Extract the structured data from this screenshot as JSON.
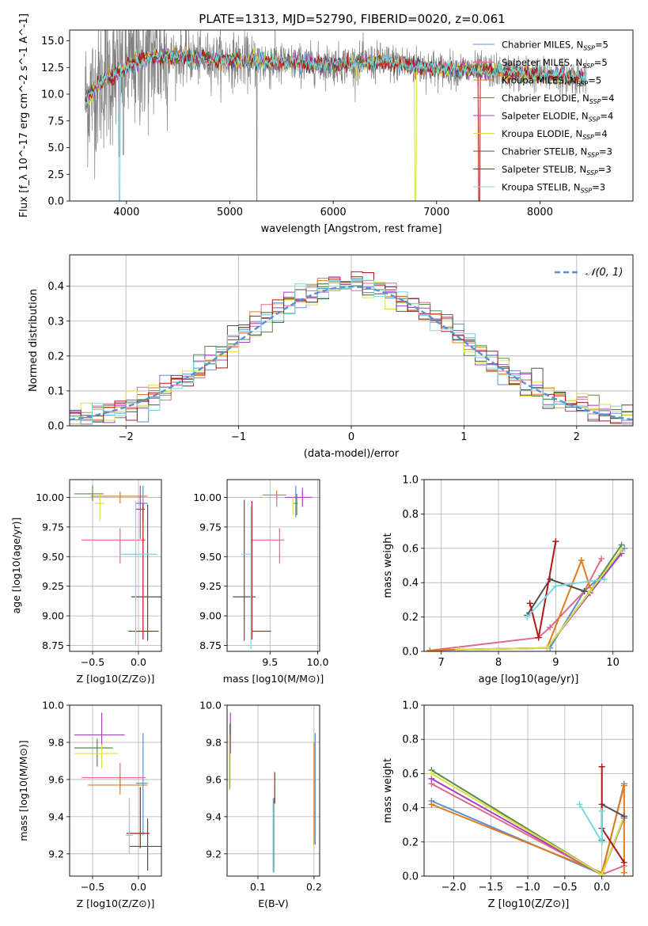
{
  "figure": {
    "title": "PLATE=1313, MJD=52790, FIBERID=0020, z=0.061"
  },
  "colors": {
    "chabrier_miles": "#5b8fd6",
    "salpeter_miles": "#e06a8a",
    "kroupa_miles": "#e07b1a",
    "chabrier_elodie": "#5a8a4a",
    "salpeter_elodie": "#a640c0",
    "kroupa_elodie": "#d8e040",
    "chabrier_stelib": "#505050",
    "salpeter_stelib": "#b01818",
    "kroupa_stelib": "#78d8e0",
    "data": "#808080",
    "normal": "#5b8fd6"
  },
  "legend": [
    {
      "key": "chabrier_miles",
      "label": "Chabrier MILES, N_SSP=5"
    },
    {
      "key": "salpeter_miles",
      "label": "Salpeter MILES, N_SSP=5"
    },
    {
      "key": "kroupa_miles",
      "label": "Kroupa MILES, N_SSP=5"
    },
    {
      "key": "chabrier_elodie",
      "label": "Chabrier ELODIE, N_SSP=4"
    },
    {
      "key": "salpeter_elodie",
      "label": "Salpeter ELODIE, N_SSP=4"
    },
    {
      "key": "kroupa_elodie",
      "label": "Kroupa ELODIE, N_SSP=4"
    },
    {
      "key": "chabrier_stelib",
      "label": "Chabrier STELIB, N_SSP=3"
    },
    {
      "key": "salpeter_stelib",
      "label": "Salpeter STELIB, N_SSP=3"
    },
    {
      "key": "kroupa_stelib",
      "label": "Kroupa STELIB, N_SSP=3"
    }
  ],
  "chart_data": [
    {
      "id": "spectrum",
      "type": "line",
      "title": "PLATE=1313, MJD=52790, FIBERID=0020, z=0.061",
      "xlabel": "wavelength [Angstrom, rest frame]",
      "ylabel": "Flux [f_λ 10^-17 erg cm^-2 s^-1 A^-1]",
      "xlim": [
        3450,
        8900
      ],
      "ylim": [
        0,
        16
      ],
      "xticks": [
        4000,
        5000,
        6000,
        7000,
        8000
      ],
      "yticks": [
        0.0,
        2.5,
        5.0,
        7.5,
        10.0,
        12.5,
        15.0
      ],
      "grid": false,
      "legend_position": "right",
      "continuum_model": {
        "x": [
          3600,
          3800,
          4000,
          4200,
          4500,
          5000,
          5500,
          6000,
          6500,
          7000,
          7500,
          8000,
          8500
        ],
        "y": [
          9.5,
          11.5,
          12.5,
          13.5,
          13.5,
          13.2,
          12.9,
          12.8,
          13.0,
          12.4,
          12.2,
          11.8,
          11.5
        ]
      }
    },
    {
      "id": "residuals",
      "type": "histogram",
      "xlabel": "(data-model)/error",
      "ylabel": "Normed distribution",
      "xlim": [
        -2.5,
        2.5
      ],
      "ylim": [
        0,
        0.49
      ],
      "xticks": [
        -2,
        -1,
        0,
        1,
        2
      ],
      "yticks": [
        0.0,
        0.1,
        0.2,
        0.3,
        0.4
      ],
      "grid": true,
      "bin_width": 0.1,
      "reference": {
        "label": "𝒩(0, 1)",
        "mean": 0,
        "sigma": 1
      },
      "legend_position": "top-right"
    },
    {
      "id": "age_vs_Z",
      "type": "errorbar",
      "xlabel": "Z [log10(Z/Z⊙)]",
      "ylabel": "age  [log10(age/yr)]",
      "xlim": [
        -0.75,
        0.25
      ],
      "ylim": [
        8.7,
        10.15
      ],
      "xticks": [
        -0.5,
        0.0
      ],
      "yticks": [
        8.75,
        9.0,
        9.25,
        9.5,
        9.75,
        10.0
      ],
      "grid": true,
      "series": [
        {
          "key": "chabrier_miles",
          "x": 0.05,
          "xerr": [
            0.08,
            0.05
          ],
          "y": 9.95,
          "yerr": [
            0.15,
            0.15
          ]
        },
        {
          "key": "salpeter_miles",
          "x": -0.2,
          "xerr": [
            0.42,
            0.28
          ],
          "y": 9.64,
          "yerr": [
            0.2,
            0.1
          ]
        },
        {
          "key": "kroupa_miles",
          "x": -0.2,
          "xerr": [
            0.32,
            0.3
          ],
          "y": 10.01,
          "yerr": [
            0.06,
            0.04
          ]
        },
        {
          "key": "chabrier_elodie",
          "x": -0.5,
          "xerr": [
            0.2,
            0.12
          ],
          "y": 10.03,
          "yerr": [
            0.06,
            0.07
          ]
        },
        {
          "key": "salpeter_elodie",
          "x": 0.02,
          "xerr": [
            0.05,
            0.05
          ],
          "y": 9.9,
          "yerr": [
            0.25,
            0.2
          ]
        },
        {
          "key": "kroupa_elodie",
          "x": -0.42,
          "xerr": [
            0.05,
            0.05
          ],
          "y": 9.95,
          "yerr": [
            0.15,
            0.08
          ]
        },
        {
          "key": "chabrier_stelib",
          "x": 0.1,
          "xerr": [
            0.18,
            0.17
          ],
          "y": 9.16,
          "yerr": [
            0.37,
            0.78
          ]
        },
        {
          "key": "salpeter_stelib",
          "x": 0.05,
          "xerr": [
            0.16,
            0.17
          ],
          "y": 8.87,
          "yerr": [
            0.07,
            1.08
          ]
        },
        {
          "key": "kroupa_stelib",
          "x": -0.03,
          "xerr": [
            0.17,
            0.23
          ],
          "y": 9.52,
          "yerr": [
            0.77,
            0.45
          ]
        }
      ]
    },
    {
      "id": "age_vs_mass",
      "type": "errorbar",
      "xlabel": "mass [log10(M/M⊙)]",
      "ylabel": "",
      "xlim": [
        9.05,
        10.02
      ],
      "ylim": [
        8.7,
        10.15
      ],
      "xticks": [
        9.5,
        10.0
      ],
      "yticks": [
        8.75,
        9.0,
        9.25,
        9.5,
        9.75,
        10.0
      ],
      "grid": true,
      "series": [
        {
          "key": "chabrier_miles",
          "x": 9.77,
          "xerr": [
            0.02,
            0.02
          ],
          "y": 9.95,
          "yerr": [
            0.12,
            0.15
          ]
        },
        {
          "key": "salpeter_miles",
          "x": 9.6,
          "xerr": [
            0.3,
            0.05
          ],
          "y": 9.64,
          "yerr": [
            0.2,
            0.1
          ]
        },
        {
          "key": "kroupa_miles",
          "x": 9.57,
          "xerr": [
            0.15,
            0.1
          ],
          "y": 10.02,
          "yerr": [
            0.1,
            0.04
          ]
        },
        {
          "key": "chabrier_elodie",
          "x": 9.78,
          "xerr": [
            0.01,
            0.01
          ],
          "y": 9.95,
          "yerr": [
            0.1,
            0.08
          ]
        },
        {
          "key": "salpeter_elodie",
          "x": 9.84,
          "xerr": [
            0.18,
            0.1
          ],
          "y": 10.0,
          "yerr": [
            0.08,
            0.08
          ]
        },
        {
          "key": "kroupa_elodie",
          "x": 9.74,
          "xerr": [
            0.01,
            0.01
          ],
          "y": 9.95,
          "yerr": [
            0.1,
            0.05
          ]
        },
        {
          "key": "chabrier_stelib",
          "x": 9.23,
          "xerr": [
            0.12,
            0.12
          ],
          "y": 9.16,
          "yerr": [
            0.37,
            0.82
          ]
        },
        {
          "key": "salpeter_stelib",
          "x": 9.31,
          "xerr": [
            0.0,
            0.2
          ],
          "y": 8.87,
          "yerr": [
            0.07,
            1.1
          ]
        },
        {
          "key": "kroupa_stelib",
          "x": 9.3,
          "xerr": [
            0.1,
            0.0
          ],
          "y": 9.52,
          "yerr": [
            0.8,
            0.4
          ]
        }
      ]
    },
    {
      "id": "mass_weight_vs_age",
      "type": "line",
      "xlabel": "age  [log10(age/yr)]",
      "ylabel": "mass weight",
      "xlim": [
        6.7,
        10.35
      ],
      "ylim": [
        0,
        1.0
      ],
      "xticks": [
        7,
        8,
        9,
        10
      ],
      "yticks": [
        0.0,
        0.2,
        0.4,
        0.6,
        0.8,
        1.0
      ],
      "grid": true,
      "series": [
        {
          "key": "chabrier_miles",
          "x": [
            7.3,
            8.9,
            9.5,
            9.8,
            10.2
          ],
          "y": [
            0.01,
            0.02,
            0.35,
            0.44,
            0.6
          ]
        },
        {
          "key": "salpeter_miles",
          "x": [
            6.8,
            8.7,
            8.9,
            9.5,
            9.8
          ],
          "y": [
            0.005,
            0.08,
            0.14,
            0.35,
            0.54
          ]
        },
        {
          "key": "kroupa_miles",
          "x": [
            6.8,
            7.3,
            8.85,
            9.45,
            9.6
          ],
          "y": [
            0.005,
            0.01,
            0.02,
            0.53,
            0.37
          ]
        },
        {
          "key": "chabrier_elodie",
          "x": [
            7.3,
            8.85,
            9.6,
            10.15
          ],
          "y": [
            0.01,
            0.02,
            0.35,
            0.62
          ]
        },
        {
          "key": "salpeter_elodie",
          "x": [
            7.3,
            8.85,
            9.6,
            10.15
          ],
          "y": [
            0.01,
            0.02,
            0.34,
            0.57
          ]
        },
        {
          "key": "kroupa_elodie",
          "x": [
            7.3,
            8.85,
            9.6,
            10.15
          ],
          "y": [
            0.01,
            0.02,
            0.35,
            0.59
          ]
        },
        {
          "key": "chabrier_stelib",
          "x": [
            8.5,
            8.9,
            9.5
          ],
          "y": [
            0.21,
            0.42,
            0.35
          ]
        },
        {
          "key": "salpeter_stelib",
          "x": [
            8.55,
            8.7,
            9.0
          ],
          "y": [
            0.28,
            0.08,
            0.64
          ]
        },
        {
          "key": "kroupa_stelib",
          "x": [
            8.5,
            9.0,
            9.85
          ],
          "y": [
            0.2,
            0.38,
            0.42
          ]
        }
      ]
    },
    {
      "id": "mass_vs_Z",
      "type": "errorbar",
      "xlabel": "Z [log10(Z/Z⊙)]",
      "ylabel": "mass [log10(M/M⊙)]",
      "xlim": [
        -0.75,
        0.25
      ],
      "ylim": [
        9.08,
        10.0
      ],
      "xticks": [
        -0.5,
        0.0
      ],
      "yticks": [
        9.2,
        9.4,
        9.6,
        9.8,
        10.0
      ],
      "grid": true,
      "series": [
        {
          "key": "chabrier_miles",
          "x": 0.05,
          "xerr": [
            0.08,
            0.05
          ],
          "y": 9.58,
          "yerr": [
            0.28,
            0.27
          ]
        },
        {
          "key": "salpeter_miles",
          "x": -0.2,
          "xerr": [
            0.42,
            0.28
          ],
          "y": 9.61,
          "yerr": [
            0.05,
            0.08
          ]
        },
        {
          "key": "kroupa_miles",
          "x": -0.2,
          "xerr": [
            0.35,
            0.3
          ],
          "y": 9.57,
          "yerr": [
            0.05,
            0.05
          ]
        },
        {
          "key": "chabrier_elodie",
          "x": -0.45,
          "xerr": [
            0.25,
            0.17
          ],
          "y": 9.77,
          "yerr": [
            0.1,
            0.05
          ]
        },
        {
          "key": "salpeter_elodie",
          "x": -0.4,
          "xerr": [
            0.3,
            0.25
          ],
          "y": 9.84,
          "yerr": [
            0.08,
            0.12
          ]
        },
        {
          "key": "kroupa_elodie",
          "x": -0.4,
          "xerr": [
            0.3,
            0.18
          ],
          "y": 9.74,
          "yerr": [
            0.08,
            0.05
          ]
        },
        {
          "key": "chabrier_stelib",
          "x": 0.1,
          "xerr": [
            0.2,
            0.15
          ],
          "y": 9.24,
          "yerr": [
            0.13,
            0.15
          ]
        },
        {
          "key": "salpeter_stelib",
          "x": 0.02,
          "xerr": [
            0.15,
            0.1
          ],
          "y": 9.31,
          "yerr": [
            0.08,
            0.25
          ]
        },
        {
          "key": "kroupa_stelib",
          "x": -0.1,
          "xerr": [
            0.04,
            0.04
          ],
          "y": 9.3,
          "yerr": [
            0.1,
            0.2
          ]
        }
      ]
    },
    {
      "id": "mass_vs_ebv",
      "type": "errorbar",
      "xlabel": "E(B-V)",
      "ylabel": "",
      "xlim": [
        0.045,
        0.21
      ],
      "ylim": [
        9.08,
        10.0
      ],
      "xticks": [
        0.1,
        0.2
      ],
      "yticks": [
        9.2,
        9.4,
        9.6,
        9.8,
        10.0
      ],
      "grid": true,
      "series": [
        {
          "key": "chabrier_miles",
          "x": 0.202,
          "xerr": [
            0,
            0
          ],
          "y": 9.55,
          "yerr": [
            0.3,
            0.3
          ]
        },
        {
          "key": "salpeter_miles",
          "x": 0.2,
          "xerr": [
            0,
            0
          ],
          "y": 9.6,
          "yerr": [
            0.3,
            0.2
          ]
        },
        {
          "key": "kroupa_miles",
          "x": 0.2,
          "xerr": [
            0,
            0
          ],
          "y": 9.55,
          "yerr": [
            0.3,
            0.25
          ]
        },
        {
          "key": "chabrier_elodie",
          "x": 0.05,
          "xerr": [
            0,
            0
          ],
          "y": 9.75,
          "yerr": [
            0.2,
            0.15
          ]
        },
        {
          "key": "salpeter_elodie",
          "x": 0.051,
          "xerr": [
            0,
            0
          ],
          "y": 9.84,
          "yerr": [
            0.1,
            0.12
          ]
        },
        {
          "key": "kroupa_elodie",
          "x": 0.049,
          "xerr": [
            0,
            0
          ],
          "y": 9.7,
          "yerr": [
            0.16,
            0.14
          ]
        },
        {
          "key": "chabrier_stelib",
          "x": 0.128,
          "xerr": [
            0,
            0
          ],
          "y": 9.3,
          "yerr": [
            0.2,
            0.2
          ]
        },
        {
          "key": "salpeter_stelib",
          "x": 0.13,
          "xerr": [
            0,
            0
          ],
          "y": 9.52,
          "yerr": [
            0.05,
            0.12
          ]
        },
        {
          "key": "kroupa_stelib",
          "x": 0.127,
          "xerr": [
            0,
            0
          ],
          "y": 9.3,
          "yerr": [
            0.2,
            0.2
          ]
        }
      ]
    },
    {
      "id": "mass_weight_vs_Z",
      "type": "line",
      "xlabel": "Z [log10(Z/Z⊙)]",
      "ylabel": "mass weight",
      "xlim": [
        -2.4,
        0.42
      ],
      "ylim": [
        0,
        1.0
      ],
      "xticks": [
        -2.0,
        -1.5,
        -1.0,
        -0.5,
        0.0
      ],
      "yticks": [
        0.0,
        0.2,
        0.4,
        0.6,
        0.8,
        1.0
      ],
      "grid": true,
      "series": [
        {
          "key": "chabrier_miles",
          "x": [
            -2.3,
            0.0,
            0.3
          ],
          "y": [
            0.44,
            0.01,
            0.54
          ]
        },
        {
          "key": "salpeter_miles",
          "x": [
            -2.3,
            0.0,
            0.3
          ],
          "y": [
            0.54,
            0.01,
            0.06
          ]
        },
        {
          "key": "kroupa_miles",
          "x": [
            -2.3,
            0.0,
            0.3,
            0.3
          ],
          "y": [
            0.42,
            0.02,
            0.53,
            0.02
          ]
        },
        {
          "key": "chabrier_elodie",
          "x": [
            -2.3,
            0.0,
            0.3
          ],
          "y": [
            0.62,
            0.01,
            0.35
          ]
        },
        {
          "key": "salpeter_elodie",
          "x": [
            -2.3,
            0.0,
            0.3
          ],
          "y": [
            0.57,
            0.01,
            0.34
          ]
        },
        {
          "key": "kroupa_elodie",
          "x": [
            -2.3,
            0.0,
            0.3
          ],
          "y": [
            0.6,
            0.01,
            0.35
          ]
        },
        {
          "key": "chabrier_stelib",
          "x": [
            0.0,
            0.0,
            0.3
          ],
          "y": [
            0.21,
            0.42,
            0.35
          ]
        },
        {
          "key": "salpeter_stelib",
          "x": [
            0.0,
            0.0,
            0.3
          ],
          "y": [
            0.64,
            0.28,
            0.08
          ]
        },
        {
          "key": "kroupa_stelib",
          "x": [
            -0.3,
            0.0,
            0.0
          ],
          "y": [
            0.42,
            0.2,
            0.38
          ]
        }
      ]
    }
  ]
}
